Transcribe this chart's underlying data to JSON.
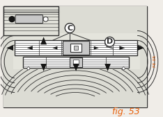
{
  "fig_label": "fig. 53",
  "fig_label_color": "#e8600a",
  "fig_label_fontsize": 9,
  "side_text": "FE 05",
  "side_text_color": "#e8600a",
  "background_color": "#f0ede8",
  "border_color": "#303030",
  "label_C": "C",
  "label_D": "D",
  "label_fontsize": 8,
  "dark_fill": "#151515",
  "light_gray": "#c8c8c8",
  "mid_gray": "#909090",
  "white": "#ffffff",
  "near_white": "#e8e8e8"
}
